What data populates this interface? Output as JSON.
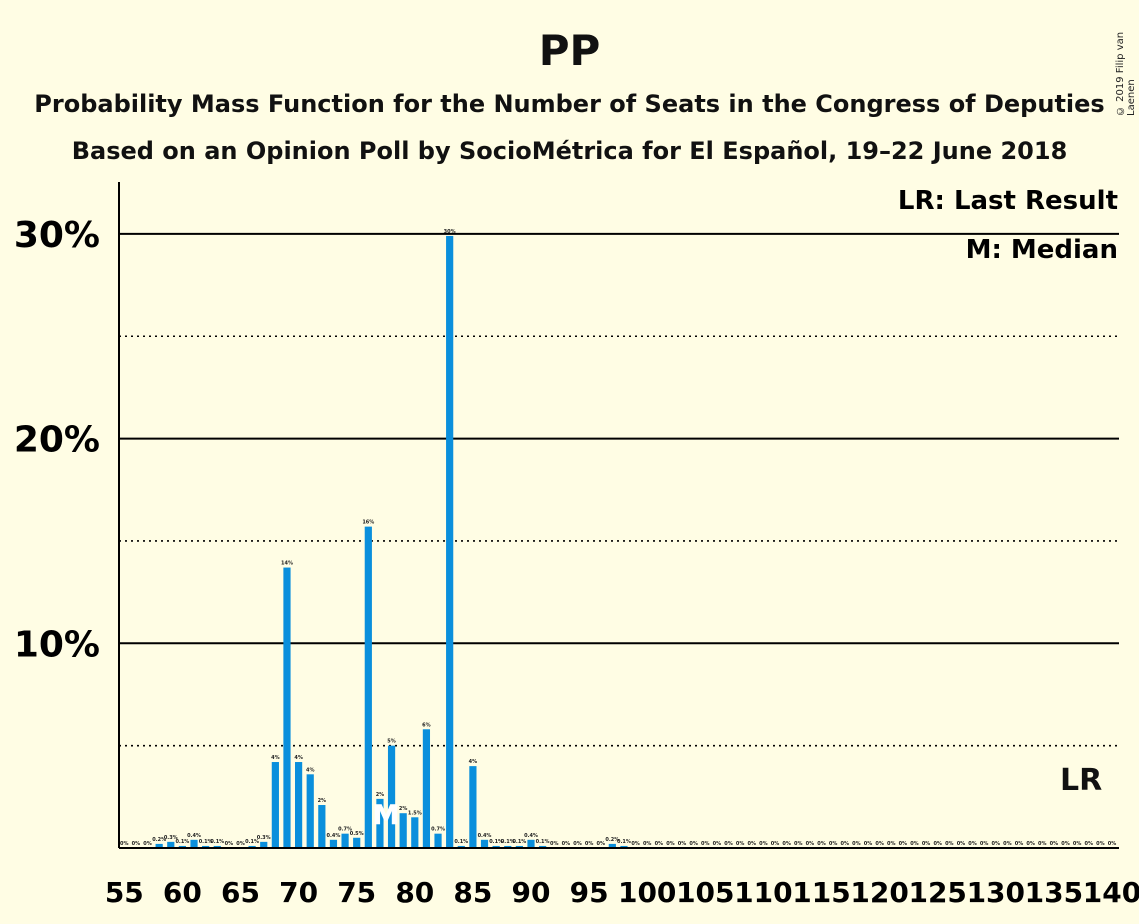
{
  "header": {
    "title": "PP",
    "subtitle": "Probability Mass Function for the Number of Seats in the Congress of Deputies",
    "subtitle2": "Based on an Opinion Poll by SocioMétrica for El Español, 19–22 June 2018",
    "copyright": "© 2019 Filip van Laenen"
  },
  "legend": {
    "last_result": "LR: Last Result",
    "median": "M: Median",
    "lr_marker": "LR",
    "median_marker": "M"
  },
  "chart_data": {
    "type": "bar",
    "bar_color": "#0A8FDC",
    "x": [
      55,
      56,
      57,
      58,
      59,
      60,
      61,
      62,
      63,
      64,
      65,
      66,
      67,
      68,
      69,
      70,
      71,
      72,
      73,
      74,
      75,
      76,
      77,
      78,
      79,
      80,
      81,
      82,
      83,
      84,
      85,
      86,
      87,
      88,
      89,
      90,
      91,
      92,
      93,
      94,
      95,
      96,
      97,
      98,
      99,
      100,
      101,
      102,
      103,
      104,
      105,
      106,
      107,
      108,
      109,
      110,
      111,
      112,
      113,
      114,
      115,
      116,
      117,
      118,
      119,
      120,
      121,
      122,
      123,
      124,
      125,
      126,
      127,
      128,
      129,
      130,
      131,
      132,
      133,
      134,
      135,
      136,
      137,
      138,
      139,
      140
    ],
    "values": [
      0,
      0,
      0,
      0.2,
      0.3,
      0.1,
      0.4,
      0.1,
      0.1,
      0,
      0,
      0.1,
      0.3,
      4.2,
      13.7,
      4.2,
      3.6,
      2.1,
      0.4,
      0.7,
      0.5,
      15.7,
      2.4,
      5.0,
      1.7,
      1.5,
      5.8,
      0.7,
      29.9,
      0.1,
      4.0,
      0.4,
      0.1,
      0.1,
      0.1,
      0.4,
      0.1,
      0,
      0,
      0,
      0,
      0,
      0.2,
      0.1,
      0,
      0,
      0,
      0,
      0,
      0,
      0,
      0,
      0,
      0,
      0,
      0,
      0,
      0,
      0,
      0,
      0,
      0,
      0,
      0,
      0,
      0,
      0,
      0,
      0,
      0,
      0,
      0,
      0,
      0,
      0,
      0,
      0,
      0,
      0,
      0,
      0,
      0,
      0,
      0,
      0,
      0
    ],
    "labels": [
      "0%",
      "0%",
      "0%",
      "0.2%",
      "0.3%",
      "0.1%",
      "0.4%",
      "0.1%",
      "0.1%",
      "0%",
      "0%",
      "0.1%",
      "0.3%",
      "4%",
      "14%",
      "4%",
      "4%",
      "2%",
      "0.4%",
      "0.7%",
      "0.5%",
      "16%",
      "2%",
      "5%",
      "2%",
      "1.5%",
      "6%",
      "0.7%",
      "30%",
      "0.1%",
      "4%",
      "0.4%",
      "0.1%",
      "0.1%",
      "0.1%",
      "0.4%",
      "0.1%",
      "0%",
      "0%",
      "0%",
      "0%",
      "0%",
      "0.2%",
      "0.1%",
      "0%",
      "0%",
      "0%",
      "0%",
      "0%",
      "0%",
      "0%",
      "0%",
      "0%",
      "0%",
      "0%",
      "0%",
      "0%",
      "0%",
      "0%",
      "0%",
      "0%",
      "0%",
      "0%",
      "0%",
      "0%",
      "0%",
      "0%",
      "0%",
      "0%",
      "0%",
      "0%",
      "0%",
      "0%",
      "0%",
      "0%",
      "0%",
      "0%",
      "0%",
      "0%",
      "0%",
      "0%",
      "0%",
      "0%",
      "0%",
      "0%",
      "0%"
    ],
    "xticks": [
      55,
      60,
      65,
      70,
      75,
      80,
      85,
      90,
      95,
      100,
      105,
      110,
      115,
      120,
      125,
      130,
      135,
      140
    ],
    "yticks": [
      {
        "value": 10,
        "label": "10%"
      },
      {
        "value": 20,
        "label": "20%"
      },
      {
        "value": 30,
        "label": "30%"
      }
    ],
    "ygrid_dotted": [
      5,
      15,
      25
    ],
    "ylim": [
      0,
      32.5
    ],
    "xlim": [
      54.5,
      140.5
    ],
    "median": 77,
    "last_result": 137
  }
}
